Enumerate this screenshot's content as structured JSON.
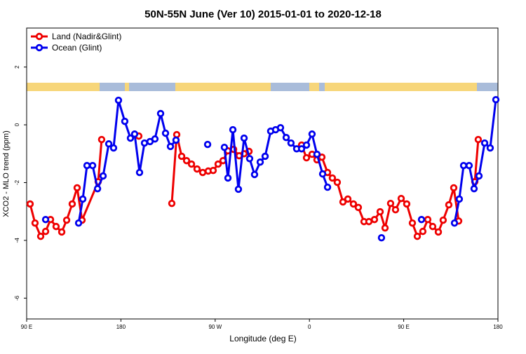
{
  "chart_data": {
    "type": "line",
    "title": "50N-55N June (Ver 10)   2015-01-01 to 2020-12-18",
    "x_label": "Longitude (deg E)",
    "y_label": "XCO2 - MLO trend (ppm)",
    "xlim": [
      90,
      540
    ],
    "xticks": [
      {
        "value": 90,
        "label": "90 E"
      },
      {
        "value": 180,
        "label": "180"
      },
      {
        "value": 270,
        "label": "90 W"
      },
      {
        "value": 360,
        "label": "0"
      },
      {
        "value": 450,
        "label": "90 E"
      },
      {
        "value": 540,
        "label": "180"
      }
    ],
    "ylim": [
      -6.72,
      3.35
    ],
    "yticks": [
      -6,
      -4,
      -2,
      0,
      2
    ],
    "legend": "top-left",
    "series": [
      {
        "name": "Land (Nadir&Glint)",
        "color": "#ee0000",
        "x": [
          93.3,
          98.0,
          103.4,
          108.1,
          112.8,
          118.1,
          123.5,
          128.2,
          133.5,
          138.2,
          142.9,
          158.3,
          161.6,
          null,
          197.1,
          null,
          228.6,
          233.3,
          238.0,
          242.7,
          247.4,
          252.7,
          258.1,
          263.4,
          268.1,
          272.8,
          277.5,
          282.2,
          287.6,
          292.9,
          297.6,
          302.3,
          null,
          352.5,
          357.2,
          362.5,
          367.2,
          371.9,
          377.3,
          381.9,
          386.6,
          392.0,
          396.7,
          402.0,
          406.7,
          412.1,
          416.8,
          422.1,
          427.5,
          432.2,
          437.5,
          442.2,
          447.6,
          452.9,
          458.3,
          463.0,
          468.3,
          473.0,
          477.7,
          483.1,
          487.7,
          493.1,
          497.8,
          502.5,
          null,
          517.9,
          521.2
        ],
        "values": [
          -2.74,
          -3.4,
          -3.86,
          -3.69,
          -3.28,
          -3.52,
          -3.71,
          -3.3,
          -2.74,
          -2.18,
          -3.3,
          -1.97,
          -0.51,
          null,
          -0.39,
          null,
          -2.72,
          -0.34,
          -1.09,
          -1.24,
          -1.36,
          -1.53,
          -1.65,
          -1.6,
          -1.58,
          -1.36,
          -1.24,
          -0.9,
          -0.85,
          -1.07,
          -1.0,
          -0.92,
          null,
          -0.7,
          -1.14,
          -1.02,
          -1.21,
          -1.12,
          -1.65,
          -1.84,
          -1.99,
          -2.67,
          -2.57,
          -2.74,
          -2.86,
          -3.35,
          -3.35,
          -3.28,
          -3.01,
          -3.57,
          -2.72,
          -2.94,
          -2.55,
          -2.74,
          -3.4,
          -3.86,
          -3.69,
          -3.28,
          -3.52,
          -3.71,
          -3.3,
          -2.77,
          -2.18,
          -3.33,
          null,
          -1.97,
          -0.51
        ]
      },
      {
        "name": "Ocean (Glint)",
        "color": "#0000ee",
        "x": [
          108.1,
          null,
          139.6,
          143.6,
          147.6,
          153.0,
          157.7,
          163.0,
          168.4,
          173.0,
          177.7,
          183.7,
          189.1,
          193.1,
          197.8,
          202.5,
          207.8,
          212.5,
          217.9,
          222.6,
          227.3,
          232.6,
          null,
          262.8,
          null,
          278.8,
          282.2,
          286.9,
          292.2,
          297.6,
          302.9,
          307.6,
          313.0,
          317.7,
          323.0,
          327.7,
          332.4,
          337.8,
          342.4,
          347.8,
          352.5,
          357.2,
          362.5,
          367.2,
          372.6,
          377.3,
          null,
          428.8,
          null,
          467.0,
          null,
          498.5,
          503.1,
          507.2,
          512.5,
          517.2,
          521.9,
          527.3,
          532.6,
          538.0
        ],
        "values": [
          -3.28,
          null,
          -3.4,
          -2.57,
          -1.41,
          -1.41,
          -2.21,
          -1.77,
          -0.66,
          -0.8,
          0.85,
          0.12,
          -0.46,
          -0.32,
          -1.65,
          -0.63,
          -0.58,
          -0.49,
          0.39,
          -0.29,
          -0.75,
          -0.53,
          null,
          -0.68,
          null,
          -0.78,
          -1.84,
          -0.17,
          -2.23,
          -0.46,
          -1.17,
          -1.72,
          -1.29,
          -1.09,
          -0.22,
          -0.17,
          -0.1,
          -0.44,
          -0.63,
          -0.83,
          -0.83,
          -0.7,
          -0.32,
          -1.02,
          -1.7,
          -2.16,
          null,
          -3.91,
          null,
          -3.28,
          null,
          -3.4,
          -2.57,
          -1.41,
          -1.41,
          -2.21,
          -1.77,
          -0.63,
          -0.8,
          0.87
        ]
      }
    ]
  }
}
